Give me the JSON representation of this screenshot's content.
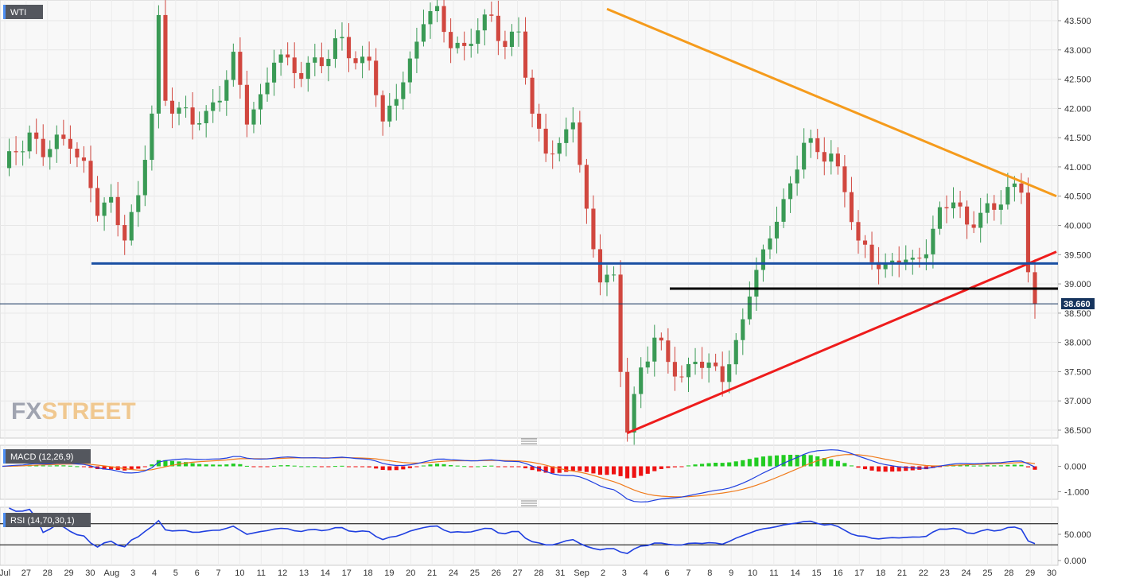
{
  "chart_data": {
    "type": "candlestick",
    "symbol": "WTI",
    "last_price": "38.660",
    "ylim": [
      36.4,
      43.9
    ],
    "y_ticks": [
      "43.500",
      "43.000",
      "42.500",
      "42.000",
      "41.500",
      "41.000",
      "40.500",
      "40.000",
      "39.500",
      "39.000",
      "38.500",
      "38.000",
      "37.500",
      "37.000",
      "36.500"
    ],
    "x_ticks": [
      "Jul",
      "27",
      "28",
      "29",
      "30",
      "Aug",
      "3",
      "4",
      "5",
      "6",
      "7",
      "10",
      "11",
      "12",
      "13",
      "14",
      "17",
      "18",
      "19",
      "20",
      "21",
      "24",
      "25",
      "26",
      "27",
      "28",
      "31",
      "Sep",
      "2",
      "3",
      "4",
      "6",
      "7",
      "8",
      "9",
      "10",
      "11",
      "14",
      "15",
      "16",
      "17",
      "18",
      "21",
      "22",
      "23",
      "24",
      "25",
      "28",
      "29",
      "30"
    ],
    "series": [
      {
        "name": "WTI",
        "close_points": [
          [
            0,
            40.9
          ],
          [
            2,
            41.3
          ],
          [
            4,
            41.6
          ],
          [
            6,
            41.2
          ],
          [
            8,
            41.4
          ],
          [
            10,
            41.5
          ],
          [
            12,
            41.0
          ],
          [
            14,
            40.2
          ],
          [
            16,
            40.4
          ],
          [
            18,
            39.9
          ],
          [
            20,
            40.4
          ],
          [
            22,
            41.9
          ],
          [
            23,
            43.5
          ],
          [
            24,
            42.2
          ],
          [
            26,
            42.0
          ],
          [
            28,
            41.7
          ],
          [
            30,
            41.9
          ],
          [
            32,
            42.3
          ],
          [
            34,
            42.8
          ],
          [
            36,
            41.8
          ],
          [
            38,
            42.2
          ],
          [
            40,
            42.9
          ],
          [
            42,
            42.7
          ],
          [
            44,
            42.6
          ],
          [
            46,
            42.9
          ],
          [
            48,
            42.8
          ],
          [
            50,
            43.2
          ],
          [
            52,
            42.8
          ],
          [
            54,
            42.9
          ],
          [
            56,
            41.6
          ],
          [
            58,
            42.3
          ],
          [
            60,
            42.8
          ],
          [
            62,
            43.5
          ],
          [
            64,
            43.6
          ],
          [
            66,
            43.2
          ],
          [
            68,
            43.0
          ],
          [
            70,
            43.3
          ],
          [
            72,
            43.6
          ],
          [
            74,
            43.1
          ],
          [
            76,
            43.3
          ],
          [
            78,
            41.8
          ],
          [
            80,
            41.4
          ],
          [
            82,
            41.3
          ],
          [
            84,
            41.8
          ],
          [
            86,
            40.2
          ],
          [
            88,
            39.2
          ],
          [
            90,
            39.0
          ],
          [
            91,
            37.5
          ],
          [
            92,
            36.5
          ],
          [
            94,
            37.6
          ],
          [
            96,
            38.1
          ],
          [
            98,
            37.6
          ],
          [
            100,
            37.4
          ],
          [
            102,
            37.8
          ],
          [
            104,
            37.5
          ],
          [
            106,
            37.4
          ],
          [
            108,
            38.0
          ],
          [
            110,
            38.9
          ],
          [
            112,
            39.4
          ],
          [
            114,
            40.2
          ],
          [
            116,
            40.7
          ],
          [
            118,
            41.4
          ],
          [
            120,
            41.2
          ],
          [
            122,
            41.3
          ],
          [
            124,
            40.6
          ],
          [
            126,
            39.6
          ],
          [
            128,
            39.5
          ],
          [
            130,
            39.3
          ],
          [
            132,
            39.4
          ],
          [
            134,
            39.3
          ],
          [
            136,
            39.7
          ],
          [
            138,
            40.2
          ],
          [
            140,
            40.4
          ],
          [
            142,
            40.0
          ],
          [
            144,
            40.3
          ],
          [
            146,
            40.2
          ],
          [
            148,
            40.6
          ],
          [
            150,
            40.7
          ],
          [
            151,
            39.2
          ],
          [
            152,
            38.66
          ]
        ]
      }
    ],
    "annotations": [
      {
        "type": "trendline",
        "color": "#f59b1c",
        "from": [
          89,
          43.7
        ],
        "to": [
          160,
          40.5
        ]
      },
      {
        "type": "trendline",
        "color": "#ee1c1c",
        "from": [
          92,
          36.45
        ],
        "to": [
          160,
          39.55
        ]
      },
      {
        "type": "horizontal",
        "color": "#1a4fa3",
        "value": 39.35
      },
      {
        "type": "horizontal",
        "color": "#000000",
        "value": 38.92
      }
    ],
    "indicators": [
      {
        "name": "MACD (12,26,9)",
        "y_ticks": [
          "0.000",
          "-1.000"
        ]
      },
      {
        "name": "RSI (14,70,30,1)",
        "y_ticks": [
          "50.000",
          "0.000"
        ]
      }
    ]
  },
  "watermark": "FXSTREET",
  "colors": {
    "bull": "#3a9a55",
    "bear": "#d1473f",
    "macd": "#1f3fe0",
    "signal": "#f07b1c",
    "rsi": "#1f3fe0"
  }
}
